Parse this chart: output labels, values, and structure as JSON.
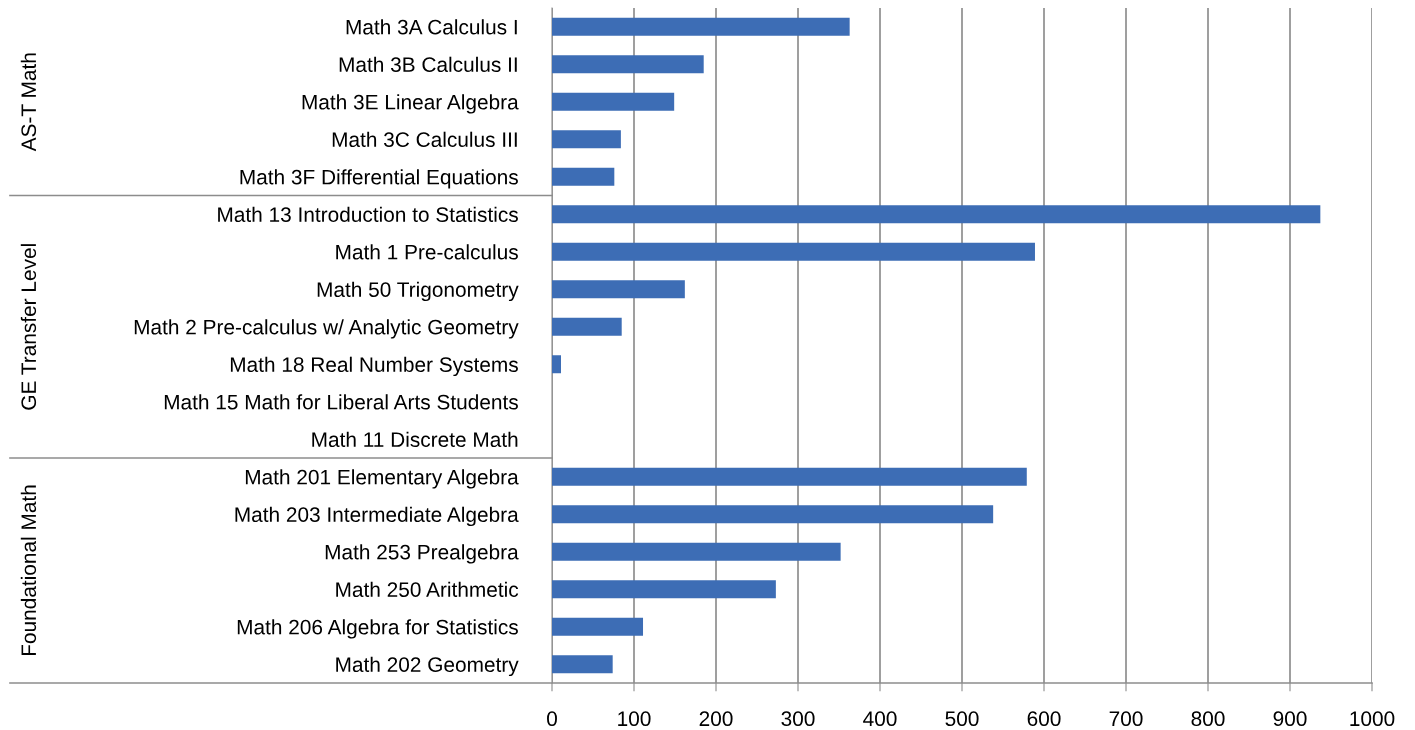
{
  "chart_data": {
    "type": "bar",
    "orientation": "horizontal",
    "categories": [
      "Math 3A Calculus I",
      "Math 3B Calculus II",
      "Math 3E Linear Algebra",
      "Math 3C Calculus III",
      "Math 3F Differential Equations",
      "Math 13 Introduction to Statistics",
      "Math 1 Pre-calculus",
      "Math 50 Trigonometry",
      "Math 2 Pre-calculus w/ Analytic Geometry",
      "Math 18 Real Number Systems",
      "Math 15 Math for Liberal Arts Students",
      "Math 11 Discrete Math",
      "Math 201 Elementary Algebra",
      "Math 203 Intermediate Algebra",
      "Math 253 Prealgebra",
      "Math 250 Arithmetic",
      "Math 206 Algebra for Statistics",
      "Math 202 Geometry"
    ],
    "values": [
      363,
      185,
      149,
      84,
      76,
      937,
      589,
      162,
      85,
      11,
      0,
      0,
      579,
      538,
      352,
      273,
      111,
      74
    ],
    "color": "#3d6db5",
    "xlim": [
      0,
      1000
    ],
    "xticks": [
      0,
      100,
      200,
      300,
      400,
      500,
      600,
      700,
      800,
      900,
      1000
    ],
    "grid": "x",
    "annotations": [
      "AS-T Math",
      "GE Transfer Level",
      "Foundational Math"
    ]
  }
}
